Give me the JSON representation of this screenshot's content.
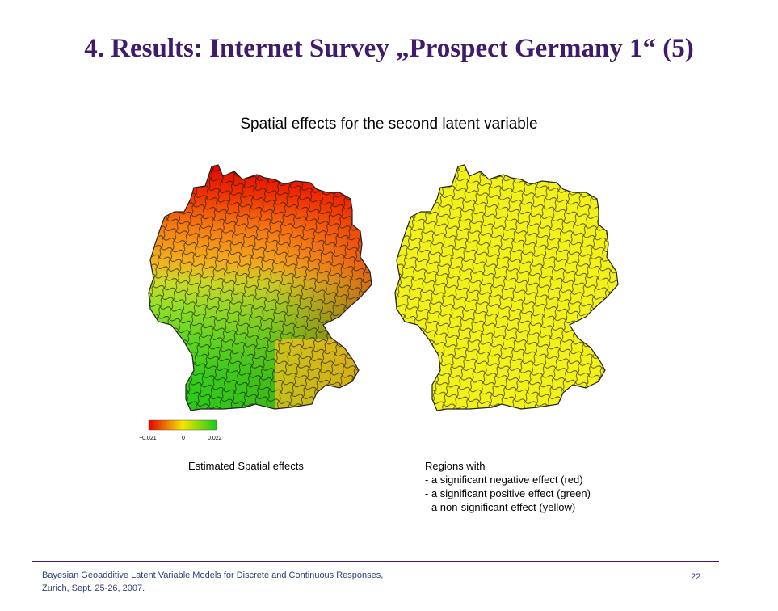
{
  "slide": {
    "title": "4. Results:  Internet Survey „Prospect Germany 1“ (5)",
    "subtitle": "Spatial effects for the second latent variable"
  },
  "legend": {
    "min_label": "−0.021",
    "mid_label": "0",
    "max_label": "0.022",
    "colors": [
      "#e60000",
      "#f7e400",
      "#19cc19"
    ]
  },
  "captions": {
    "left": "Estimated Spatial effects",
    "right_lines": [
      "Regions with",
      "- a significant negative effect (red)",
      "- a significant positive effect (green)",
      "- a non-significant effect (yellow)"
    ]
  },
  "colors": {
    "title": "#3f1c6b",
    "map_yellow": "#f2f21a",
    "region_border": "#222222"
  },
  "footer": {
    "line1": "Bayesian Geoadditive Latent Variable Models for Discrete and Continuous Responses,",
    "line2": "Zurich, Sept. 25-26, 2007.",
    "page_number": "22"
  }
}
